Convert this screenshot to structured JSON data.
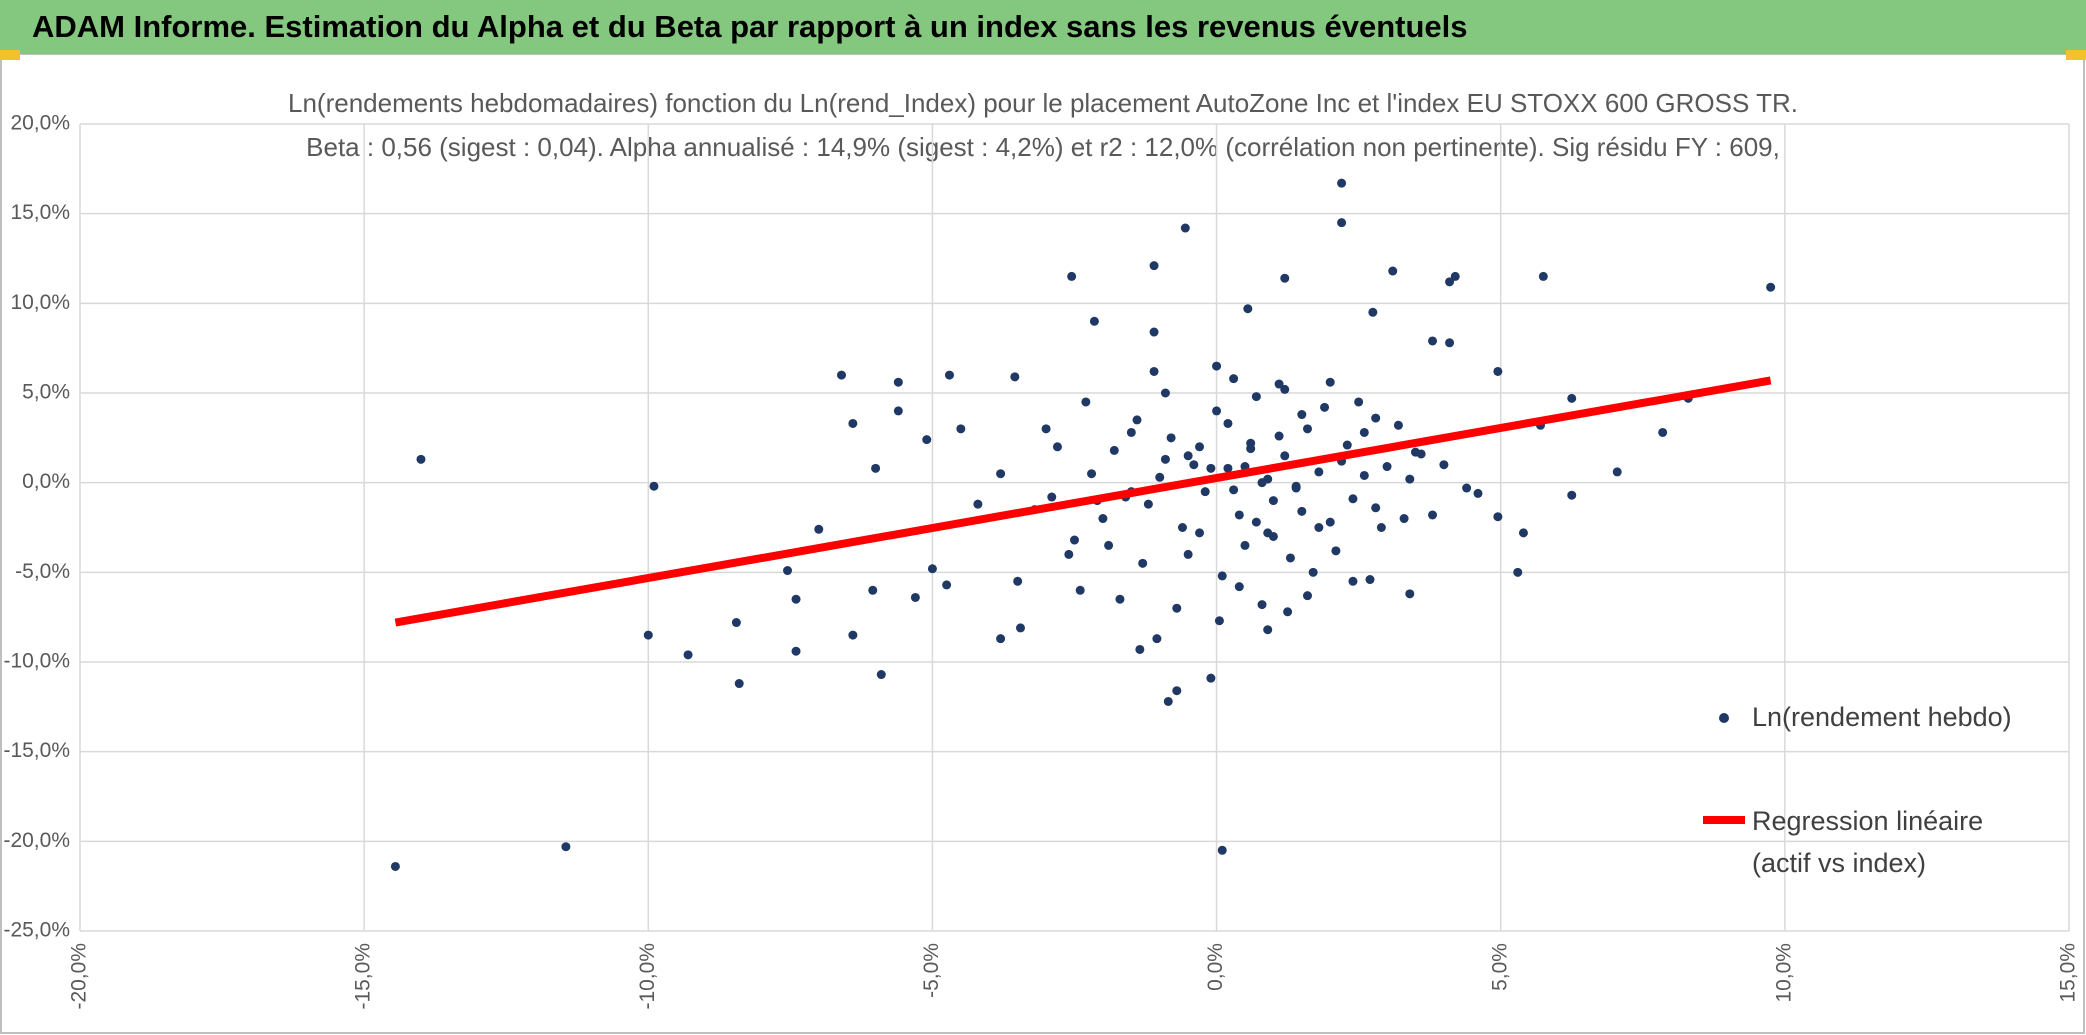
{
  "header": {
    "title": "ADAM Informe. Estimation du Alpha et du Beta par rapport à un index sans les revenus éventuels"
  },
  "chart_data": {
    "type": "scatter",
    "title": "Ln(rendements hebdomadaires) fonction du Ln(rend_Index) pour le placement AutoZone Inc et l'index EU STOXX 600 GROSS TR.",
    "subtitle": "Beta : 0,56 (sigest : 0,04). Alpha annualisé : 14,9% (sigest : 4,2%) et r2 : 12,0% (corrélation non pertinente). Sig résidu FY : 609,",
    "xlim": [
      -20,
      15
    ],
    "ylim": [
      -25,
      20
    ],
    "grid": true,
    "xticks": [
      {
        "value": -20,
        "label": "-20,0%"
      },
      {
        "value": -15,
        "label": "-15,0%"
      },
      {
        "value": -10,
        "label": "-10,0%"
      },
      {
        "value": -5,
        "label": "-5,0%"
      },
      {
        "value": 0,
        "label": "0,0%"
      },
      {
        "value": 5,
        "label": "5,0%"
      },
      {
        "value": 10,
        "label": "10,0%"
      },
      {
        "value": 15,
        "label": "15,0%"
      }
    ],
    "yticks": [
      {
        "value": -25,
        "label": "-25,0%"
      },
      {
        "value": -20,
        "label": "-20,0%"
      },
      {
        "value": -15,
        "label": "-15,0%"
      },
      {
        "value": -10,
        "label": "-10,0%"
      },
      {
        "value": -5,
        "label": "-5,0%"
      },
      {
        "value": 0,
        "label": "0,0%"
      },
      {
        "value": 5,
        "label": "5,0%"
      },
      {
        "value": 10,
        "label": "10,0%"
      },
      {
        "value": 15,
        "label": "15,0%"
      },
      {
        "value": 20,
        "label": "20,0%"
      }
    ],
    "series": [
      {
        "name": "Ln(rendement hebdo)",
        "color": "#203864",
        "style": "points",
        "x": [
          -14.0,
          -14.45,
          -11.45,
          -9.9,
          -10.0,
          -9.3,
          -8.4,
          -8.45,
          -7.4,
          -7.4,
          -7.55,
          -7.0,
          -6.6,
          -6.4,
          -6.4,
          -5.9,
          -6.05,
          -6.0,
          -5.6,
          -5.6,
          -5.3,
          -5.1,
          -4.7,
          -4.5,
          -4.75,
          -5.0,
          -3.8,
          -3.55,
          -3.45,
          -2.55,
          -2.15,
          -1.1,
          -0.55,
          -1.1,
          -1.35,
          -1.05,
          -0.85,
          -0.7,
          -0.1,
          0.1,
          2.2,
          2.2,
          1.2,
          0.55,
          3.1,
          2.75,
          4.2,
          4.1,
          3.8,
          4.1,
          5.75,
          9.75,
          8.3,
          7.85,
          7.05,
          6.25,
          5.7,
          5.4,
          5.3,
          4.95,
          4.95,
          6.25,
          3.4,
          2.7,
          1.25,
          0.9,
          0.05,
          4.4,
          -3.2,
          -2.8,
          -2.5,
          -2.2,
          -2.0,
          -1.8,
          -1.6,
          -1.4,
          -1.2,
          -1.0,
          -0.8,
          -0.6,
          -0.4,
          -0.2,
          0.0,
          0.2,
          0.4,
          0.6,
          0.8,
          1.0,
          1.2,
          1.4,
          1.6,
          1.8,
          2.0,
          2.2,
          2.4,
          2.6,
          2.8,
          3.0,
          3.3,
          3.6,
          -3.0,
          -2.6,
          -2.3,
          -1.9,
          -1.5,
          -1.3,
          -0.9,
          -0.5,
          -0.3,
          0.1,
          0.3,
          0.5,
          0.7,
          0.9,
          1.1,
          1.3,
          1.5,
          1.7,
          1.9,
          2.1,
          2.5,
          2.9,
          3.2,
          3.8,
          -4.2,
          -3.8,
          -3.5,
          -2.9,
          -2.4,
          -1.7,
          -1.1,
          -0.7,
          0.0,
          0.4,
          0.8,
          1.2,
          1.6,
          2.0,
          2.4,
          2.8,
          3.4,
          4.0,
          4.6,
          -0.5,
          -0.1,
          0.3,
          0.6,
          0.9,
          1.0,
          1.4,
          -0.3,
          0.2,
          0.7,
          1.1,
          1.5,
          -1.5,
          -0.9,
          0.5,
          1.8,
          2.3,
          -2.1,
          2.6,
          3.5
        ],
        "values": [
          1.3,
          -21.4,
          -20.3,
          -0.2,
          -8.5,
          -9.6,
          -11.2,
          -7.8,
          -9.4,
          -6.5,
          -4.9,
          -2.6,
          6.0,
          3.3,
          -8.5,
          -10.7,
          -6.0,
          0.8,
          5.6,
          4.0,
          -6.4,
          2.4,
          6.0,
          3.0,
          -5.7,
          -4.8,
          -8.7,
          5.9,
          -8.1,
          11.5,
          9.0,
          12.1,
          14.2,
          8.4,
          -9.3,
          -8.7,
          -12.2,
          -11.6,
          -10.9,
          -20.5,
          16.7,
          14.5,
          11.4,
          9.7,
          11.8,
          9.5,
          11.5,
          11.2,
          7.9,
          7.8,
          11.5,
          10.9,
          4.7,
          2.8,
          0.6,
          -0.7,
          3.2,
          -2.8,
          -5.0,
          -1.9,
          6.2,
          4.7,
          -6.2,
          -5.4,
          -7.2,
          -8.2,
          -7.7,
          -0.3,
          -1.5,
          2.0,
          -3.2,
          0.5,
          -2.0,
          1.8,
          -0.8,
          3.5,
          -1.2,
          0.3,
          2.5,
          -2.5,
          1.0,
          -0.5,
          4.0,
          0.8,
          -1.8,
          2.2,
          0.0,
          -3.0,
          1.5,
          -0.2,
          3.0,
          0.6,
          -2.2,
          1.2,
          -0.9,
          2.8,
          -1.4,
          0.9,
          -2.0,
          1.6,
          3.0,
          -4.0,
          4.5,
          -3.5,
          2.8,
          -4.5,
          5.0,
          -4.0,
          2.0,
          -5.2,
          5.8,
          -3.5,
          4.8,
          -2.8,
          5.5,
          -4.2,
          3.8,
          -5.0,
          4.2,
          -3.8,
          4.5,
          -2.5,
          3.2,
          -1.8,
          -1.2,
          0.5,
          -5.5,
          -0.8,
          -6.0,
          -6.5,
          6.2,
          -7.0,
          6.5,
          -5.8,
          -6.8,
          5.2,
          -6.3,
          5.6,
          -5.5,
          3.6,
          0.2,
          1.0,
          -0.6,
          1.5,
          0.8,
          -0.4,
          1.9,
          0.2,
          -1.0,
          -0.3,
          -2.8,
          3.3,
          -2.2,
          2.6,
          -1.6,
          -0.5,
          1.3,
          0.9,
          -2.5,
          2.1,
          -1.0,
          0.4,
          1.7
        ]
      },
      {
        "name": "Regression linéaire (actif vs index)",
        "color": "#ff0000",
        "style": "line",
        "x": [
          -14.45,
          9.75
        ],
        "values": [
          -7.8,
          5.7
        ]
      }
    ]
  }
}
